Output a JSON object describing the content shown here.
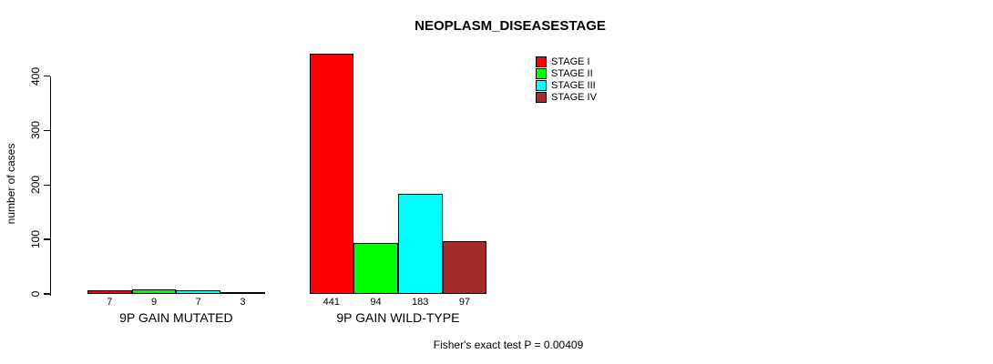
{
  "chart_data": {
    "type": "bar",
    "title": "NEOPLASM_DISEASESTAGE",
    "ylabel": "number of cases",
    "ylim": [
      0,
      400
    ],
    "yticks": [
      0,
      100,
      200,
      300,
      400
    ],
    "categories": [
      "9P GAIN MUTATED",
      "9P GAIN WILD-TYPE"
    ],
    "series": [
      {
        "name": "STAGE I",
        "color": "#ff0000",
        "values": [
          7,
          441
        ]
      },
      {
        "name": "STAGE II",
        "color": "#00ff00",
        "values": [
          9,
          94
        ]
      },
      {
        "name": "STAGE III",
        "color": "#00ffff",
        "values": [
          7,
          183
        ]
      },
      {
        "name": "STAGE IV",
        "color": "#a52a2a",
        "values": [
          3,
          97
        ]
      }
    ],
    "bar_labels": [
      [
        "7",
        "9",
        "7",
        "3"
      ],
      [
        "441",
        "94",
        "183",
        "97"
      ]
    ],
    "legend_position": "top-right",
    "grid": false,
    "annotation": "Fisher's exact test P = 0.00409",
    "colors": {
      "axis": "#000000",
      "background": "#ffffff",
      "text": "#000000"
    }
  },
  "legend": {
    "items": [
      {
        "label": "STAGE I",
        "color": "#ff0000"
      },
      {
        "label": "STAGE II",
        "color": "#00ff00"
      },
      {
        "label": "STAGE III",
        "color": "#00ffff"
      },
      {
        "label": "STAGE IV",
        "color": "#a52a2a"
      }
    ]
  }
}
